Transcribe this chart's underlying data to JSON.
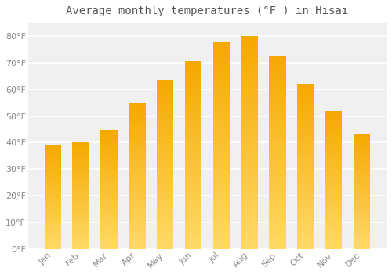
{
  "title": "Average monthly temperatures (°F ) in Hisai",
  "months": [
    "Jan",
    "Feb",
    "Mar",
    "Apr",
    "May",
    "Jun",
    "Jul",
    "Aug",
    "Sep",
    "Oct",
    "Nov",
    "Dec"
  ],
  "values": [
    39,
    40,
    44.5,
    55,
    63.5,
    70.5,
    77.5,
    80,
    72.5,
    62,
    52,
    43
  ],
  "bar_color_bottom": "#FFD966",
  "bar_color_top": "#F5A800",
  "background_color": "#FFFFFF",
  "plot_bg_color": "#F0F0F0",
  "grid_color": "#FFFFFF",
  "tick_label_color": "#888888",
  "title_color": "#555555",
  "ylim": [
    0,
    85
  ],
  "yticks": [
    0,
    10,
    20,
    30,
    40,
    50,
    60,
    70,
    80
  ],
  "ytick_labels": [
    "0°F",
    "10°F",
    "20°F",
    "30°F",
    "40°F",
    "50°F",
    "60°F",
    "70°F",
    "80°F"
  ],
  "title_fontsize": 10,
  "tick_fontsize": 8,
  "bar_width": 0.6,
  "n_gradient_steps": 100
}
